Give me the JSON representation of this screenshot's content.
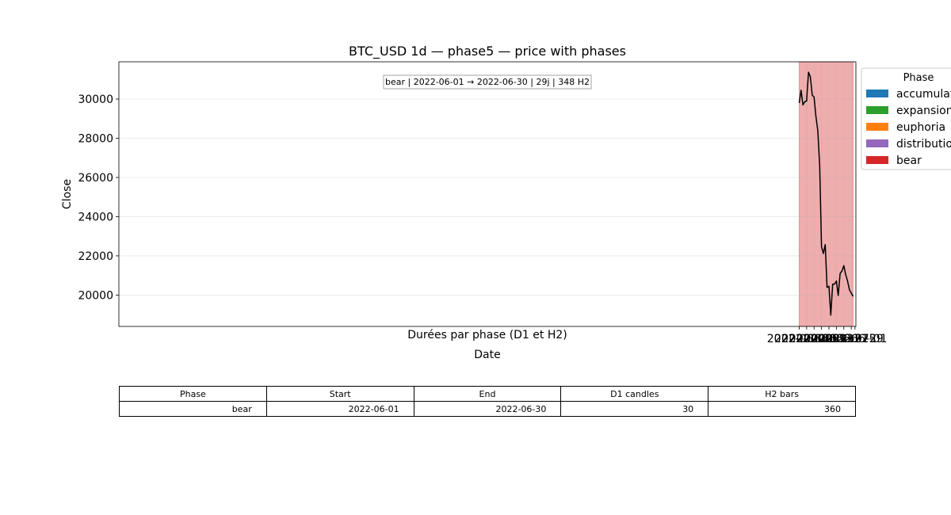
{
  "chart_data": {
    "type": "line",
    "title": "BTC_USD 1d — phase5 — price with phases",
    "xlabel": "Date",
    "ylabel": "Close",
    "x_range": [
      "2021-05-31T00:00",
      "2022-07-01T12:00"
    ],
    "ylim": [
      18400,
      31900
    ],
    "xticks": [
      "2022-06-01",
      "2022-06-05",
      "2022-06-09",
      "2022-06-13",
      "2022-06-17",
      "2022-06-21",
      "2022-06-25",
      "2022-06-29",
      "2022-07-01"
    ],
    "yticks": [
      20000,
      22000,
      24000,
      26000,
      28000,
      30000
    ],
    "grid": true,
    "line_color": "#000000",
    "series": [
      {
        "x": [
          "2022-06-01",
          "2022-06-02",
          "2022-06-03",
          "2022-06-04",
          "2022-06-05",
          "2022-06-06",
          "2022-06-07",
          "2022-06-08",
          "2022-06-09",
          "2022-06-10",
          "2022-06-11",
          "2022-06-12",
          "2022-06-13",
          "2022-06-14",
          "2022-06-15",
          "2022-06-16",
          "2022-06-17",
          "2022-06-18",
          "2022-06-19",
          "2022-06-20",
          "2022-06-21",
          "2022-06-22",
          "2022-06-23",
          "2022-06-24",
          "2022-06-25",
          "2022-06-26",
          "2022-06-27",
          "2022-06-28",
          "2022-06-29",
          "2022-06-30"
        ],
        "y": [
          29800,
          30450,
          29700,
          29860,
          29900,
          31370,
          31140,
          30200,
          30100,
          29100,
          28400,
          26600,
          22470,
          22120,
          22580,
          20390,
          20450,
          18980,
          20560,
          20560,
          20720,
          19980,
          21100,
          21230,
          21500,
          21040,
          20730,
          20270,
          20100,
          19930
        ]
      }
    ],
    "phases": [
      {
        "name": "bear",
        "start": "2022-06-01",
        "end": "2022-06-30",
        "color": "#d62728"
      }
    ],
    "annotation": "bear | 2022-06-01 → 2022-06-30 | 29j | 348 H2",
    "legend": {
      "title": "Phase",
      "placement": "outside-right",
      "entries": [
        {
          "label": "accumulation",
          "color": "#1f77b4"
        },
        {
          "label": "expansion",
          "color": "#2ca02c"
        },
        {
          "label": "euphoria",
          "color": "#ff7f0e"
        },
        {
          "label": "distribution",
          "color": "#9467bd"
        },
        {
          "label": "bear",
          "color": "#d62728"
        }
      ]
    }
  },
  "table": {
    "title": "Durées par phase (D1 et H2)",
    "columns": [
      "Phase",
      "Start",
      "End",
      "D1 candles",
      "H2 bars"
    ],
    "rows": [
      [
        "bear",
        "2022-06-01",
        "2022-06-30",
        "30",
        "360"
      ]
    ]
  }
}
